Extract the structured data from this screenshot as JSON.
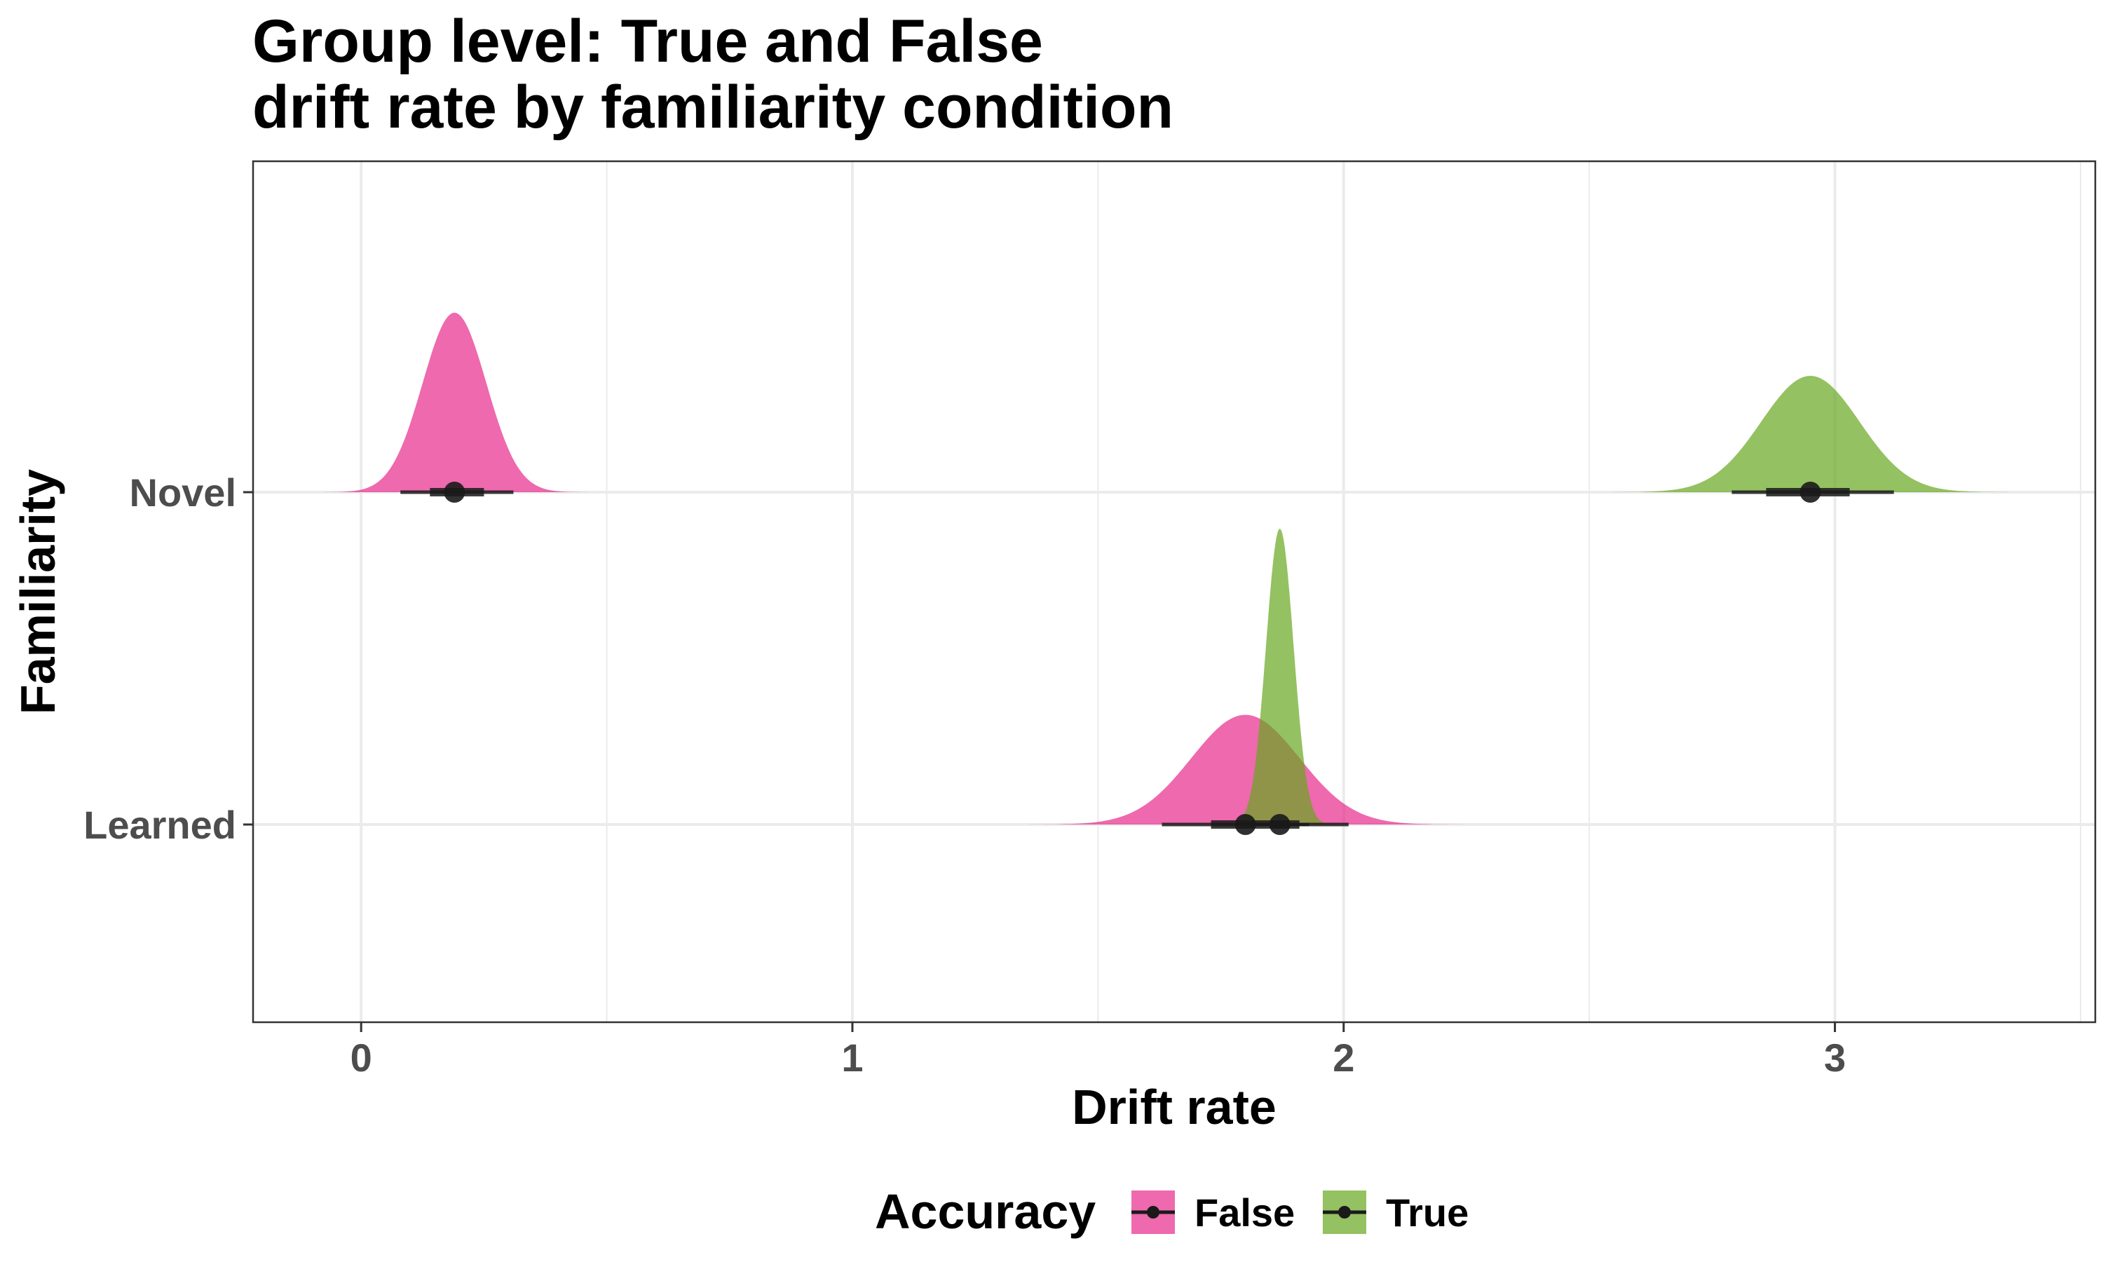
{
  "chart_data": {
    "type": "density",
    "title_lines": [
      "Group level: True and False",
      "drift rate by familiarity condition"
    ],
    "xlabel": "Drift rate",
    "ylabel": "Familiarity",
    "xlim": [
      -0.22,
      3.53
    ],
    "x_ticks": [
      0,
      1,
      2,
      3
    ],
    "x_minor_grid": [
      0.5,
      1.5,
      2.5,
      3.5
    ],
    "categories": [
      "Learned",
      "Novel"
    ],
    "grid": true,
    "legend": {
      "title": "Accuracy",
      "position": "bottom",
      "entries": [
        {
          "label": "False",
          "color": "#e7298a"
        },
        {
          "label": "True",
          "color": "#66a61e"
        }
      ]
    },
    "series": [
      {
        "name": "False",
        "color": "#e7298a",
        "distributions": [
          {
            "category": "Novel",
            "mean": 0.19,
            "sd": 0.065,
            "peak_height": 0.54,
            "interval_66": [
              0.14,
              0.25
            ],
            "interval_95": [
              0.08,
              0.31
            ]
          },
          {
            "category": "Learned",
            "mean": 1.8,
            "sd": 0.11,
            "peak_height": 0.33,
            "interval_66": [
              1.73,
              1.91
            ],
            "interval_95": [
              1.63,
              2.01
            ]
          }
        ]
      },
      {
        "name": "True",
        "color": "#66a61e",
        "distributions": [
          {
            "category": "Novel",
            "mean": 2.95,
            "sd": 0.1,
            "peak_height": 0.35,
            "interval_66": [
              2.86,
              3.03
            ],
            "interval_95": [
              2.79,
              3.12
            ]
          },
          {
            "category": "Learned",
            "mean": 1.87,
            "sd": 0.028,
            "peak_height": 0.89,
            "interval_66": [
              1.85,
              1.89
            ],
            "interval_95": [
              1.82,
              1.93
            ]
          }
        ]
      }
    ]
  }
}
